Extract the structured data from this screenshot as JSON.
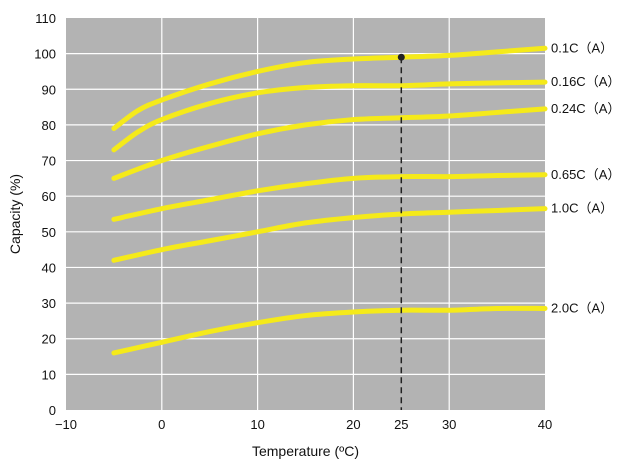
{
  "chart_data": {
    "type": "line",
    "xlabel": "Temperature (ºC)",
    "ylabel": "Capacity (%)",
    "xlim": [
      -10,
      40
    ],
    "ylim": [
      0,
      110
    ],
    "x_ticks": [
      -10,
      0,
      10,
      20,
      25,
      30,
      40
    ],
    "x_tick_labels": [
      "−10",
      "0",
      "10",
      "20",
      "25",
      "30",
      "40"
    ],
    "y_ticks": [
      0,
      10,
      20,
      30,
      40,
      50,
      60,
      70,
      80,
      90,
      100,
      110
    ],
    "y_tick_labels": [
      "0",
      "10",
      "20",
      "30",
      "40",
      "50",
      "60",
      "70",
      "80",
      "90",
      "100",
      "110"
    ],
    "grid": true,
    "reference_line": {
      "x": 25,
      "style": "dashed",
      "marker": {
        "x": 25,
        "y": 99
      }
    },
    "colors": {
      "plot_background": "#b3b3b3",
      "grid": "#ffffff",
      "series": "#f5ea1a",
      "reference": "#222222"
    },
    "series": [
      {
        "name": "0.1C（A）",
        "x": [
          -5,
          -2.5,
          0,
          5,
          10,
          15,
          20,
          25,
          30,
          35,
          40
        ],
        "y": [
          79,
          84,
          87,
          91.5,
          95,
          97.5,
          98.5,
          99,
          99.5,
          100.5,
          101.5
        ]
      },
      {
        "name": "0.16C（A）",
        "x": [
          -5,
          -2.5,
          0,
          5,
          10,
          15,
          20,
          25,
          30,
          35,
          40
        ],
        "y": [
          73,
          78,
          81.5,
          86,
          89,
          90.5,
          91,
          91,
          91.5,
          91.8,
          92
        ]
      },
      {
        "name": "0.24C（A）",
        "x": [
          -5,
          0,
          5,
          10,
          15,
          20,
          25,
          30,
          35,
          40
        ],
        "y": [
          65,
          70,
          74,
          77.5,
          80,
          81.5,
          82,
          82.5,
          83.5,
          84.5
        ]
      },
      {
        "name": "0.65C（A）",
        "x": [
          -5,
          0,
          5,
          10,
          15,
          20,
          25,
          30,
          35,
          40
        ],
        "y": [
          53.5,
          56.5,
          59,
          61.5,
          63.5,
          65,
          65.5,
          65.5,
          65.8,
          66
        ]
      },
      {
        "name": "1.0C（A）",
        "x": [
          -5,
          0,
          5,
          10,
          15,
          20,
          25,
          30,
          35,
          40
        ],
        "y": [
          42,
          45,
          47.5,
          50,
          52.5,
          54,
          55,
          55.5,
          56,
          56.5
        ]
      },
      {
        "name": "2.0C（A）",
        "x": [
          -5,
          0,
          5,
          10,
          15,
          20,
          25,
          30,
          35,
          40
        ],
        "y": [
          16,
          19,
          22,
          24.5,
          26.5,
          27.5,
          28,
          28,
          28.5,
          28.5
        ]
      }
    ]
  }
}
